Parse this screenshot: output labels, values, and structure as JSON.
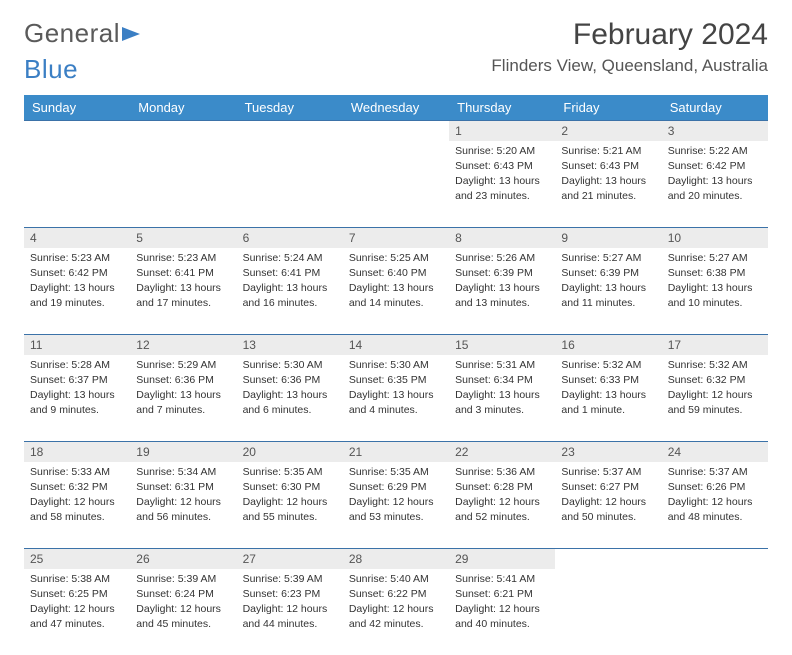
{
  "brand": {
    "part1": "General",
    "part2": "Blue"
  },
  "title": "February 2024",
  "location": "Flinders View, Queensland, Australia",
  "colors": {
    "header_bg": "#3b8bc9",
    "header_text": "#ffffff",
    "daynum_bg": "#ececec",
    "rule": "#3b72a8",
    "text": "#333333",
    "brand_gray": "#5a5a5a",
    "brand_blue": "#3b7fc4"
  },
  "weekdays": [
    "Sunday",
    "Monday",
    "Tuesday",
    "Wednesday",
    "Thursday",
    "Friday",
    "Saturday"
  ],
  "weeks": [
    [
      null,
      null,
      null,
      null,
      {
        "n": "1",
        "sunrise": "5:20 AM",
        "sunset": "6:43 PM",
        "daylight": "13 hours and 23 minutes."
      },
      {
        "n": "2",
        "sunrise": "5:21 AM",
        "sunset": "6:43 PM",
        "daylight": "13 hours and 21 minutes."
      },
      {
        "n": "3",
        "sunrise": "5:22 AM",
        "sunset": "6:42 PM",
        "daylight": "13 hours and 20 minutes."
      }
    ],
    [
      {
        "n": "4",
        "sunrise": "5:23 AM",
        "sunset": "6:42 PM",
        "daylight": "13 hours and 19 minutes."
      },
      {
        "n": "5",
        "sunrise": "5:23 AM",
        "sunset": "6:41 PM",
        "daylight": "13 hours and 17 minutes."
      },
      {
        "n": "6",
        "sunrise": "5:24 AM",
        "sunset": "6:41 PM",
        "daylight": "13 hours and 16 minutes."
      },
      {
        "n": "7",
        "sunrise": "5:25 AM",
        "sunset": "6:40 PM",
        "daylight": "13 hours and 14 minutes."
      },
      {
        "n": "8",
        "sunrise": "5:26 AM",
        "sunset": "6:39 PM",
        "daylight": "13 hours and 13 minutes."
      },
      {
        "n": "9",
        "sunrise": "5:27 AM",
        "sunset": "6:39 PM",
        "daylight": "13 hours and 11 minutes."
      },
      {
        "n": "10",
        "sunrise": "5:27 AM",
        "sunset": "6:38 PM",
        "daylight": "13 hours and 10 minutes."
      }
    ],
    [
      {
        "n": "11",
        "sunrise": "5:28 AM",
        "sunset": "6:37 PM",
        "daylight": "13 hours and 9 minutes."
      },
      {
        "n": "12",
        "sunrise": "5:29 AM",
        "sunset": "6:36 PM",
        "daylight": "13 hours and 7 minutes."
      },
      {
        "n": "13",
        "sunrise": "5:30 AM",
        "sunset": "6:36 PM",
        "daylight": "13 hours and 6 minutes."
      },
      {
        "n": "14",
        "sunrise": "5:30 AM",
        "sunset": "6:35 PM",
        "daylight": "13 hours and 4 minutes."
      },
      {
        "n": "15",
        "sunrise": "5:31 AM",
        "sunset": "6:34 PM",
        "daylight": "13 hours and 3 minutes."
      },
      {
        "n": "16",
        "sunrise": "5:32 AM",
        "sunset": "6:33 PM",
        "daylight": "13 hours and 1 minute."
      },
      {
        "n": "17",
        "sunrise": "5:32 AM",
        "sunset": "6:32 PM",
        "daylight": "12 hours and 59 minutes."
      }
    ],
    [
      {
        "n": "18",
        "sunrise": "5:33 AM",
        "sunset": "6:32 PM",
        "daylight": "12 hours and 58 minutes."
      },
      {
        "n": "19",
        "sunrise": "5:34 AM",
        "sunset": "6:31 PM",
        "daylight": "12 hours and 56 minutes."
      },
      {
        "n": "20",
        "sunrise": "5:35 AM",
        "sunset": "6:30 PM",
        "daylight": "12 hours and 55 minutes."
      },
      {
        "n": "21",
        "sunrise": "5:35 AM",
        "sunset": "6:29 PM",
        "daylight": "12 hours and 53 minutes."
      },
      {
        "n": "22",
        "sunrise": "5:36 AM",
        "sunset": "6:28 PM",
        "daylight": "12 hours and 52 minutes."
      },
      {
        "n": "23",
        "sunrise": "5:37 AM",
        "sunset": "6:27 PM",
        "daylight": "12 hours and 50 minutes."
      },
      {
        "n": "24",
        "sunrise": "5:37 AM",
        "sunset": "6:26 PM",
        "daylight": "12 hours and 48 minutes."
      }
    ],
    [
      {
        "n": "25",
        "sunrise": "5:38 AM",
        "sunset": "6:25 PM",
        "daylight": "12 hours and 47 minutes."
      },
      {
        "n": "26",
        "sunrise": "5:39 AM",
        "sunset": "6:24 PM",
        "daylight": "12 hours and 45 minutes."
      },
      {
        "n": "27",
        "sunrise": "5:39 AM",
        "sunset": "6:23 PM",
        "daylight": "12 hours and 44 minutes."
      },
      {
        "n": "28",
        "sunrise": "5:40 AM",
        "sunset": "6:22 PM",
        "daylight": "12 hours and 42 minutes."
      },
      {
        "n": "29",
        "sunrise": "5:41 AM",
        "sunset": "6:21 PM",
        "daylight": "12 hours and 40 minutes."
      },
      null,
      null
    ]
  ],
  "labels": {
    "sunrise": "Sunrise:",
    "sunset": "Sunset:",
    "daylight": "Daylight:"
  }
}
